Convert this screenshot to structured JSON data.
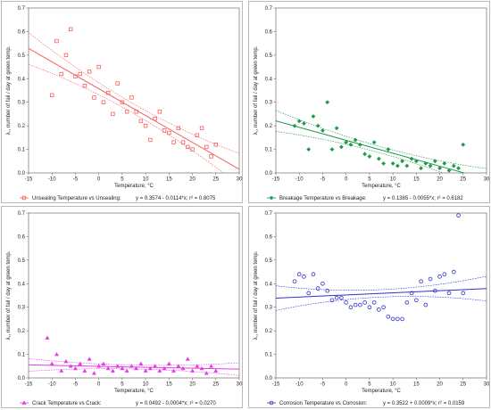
{
  "chart_data": [
    {
      "type": "scatter",
      "xlabel": "Temperature, °C",
      "ylabel": "λ꜀, number of fail / day at green temp.",
      "xlim": [
        -15,
        30
      ],
      "ylim": [
        0.0,
        0.7
      ],
      "xticks": [
        "-15",
        "-10",
        "-5",
        "0",
        "5",
        "10",
        "15",
        "20",
        "25",
        "30"
      ],
      "yticks": [
        "0.0",
        "0.1",
        "0.2",
        "0.3",
        "0.4",
        "0.5",
        "0.6",
        "0.7"
      ],
      "grid": false,
      "legend_position": "bottom",
      "series": [
        {
          "name": "Unsealing",
          "legend_label": "Unsealing  Temperature vs Unsealing:",
          "equation": "y = 0.3574 - 0.0114*x;  r² = 0.8075",
          "marker": "square",
          "color": "#f26161",
          "intercept": 0.3574,
          "slope": -0.0114,
          "band": 0.045,
          "x": [
            -10,
            -9,
            -8,
            -7,
            -6,
            -5,
            -4,
            -3,
            -2,
            -1,
            0,
            1,
            2,
            3,
            4,
            5,
            6,
            7,
            8,
            9,
            10,
            11,
            12,
            13,
            14,
            15,
            16,
            17,
            18,
            19,
            20,
            21,
            22,
            23,
            24,
            25
          ],
          "y": [
            0.33,
            0.56,
            0.42,
            0.5,
            0.61,
            0.41,
            0.42,
            0.37,
            0.43,
            0.32,
            0.45,
            0.3,
            0.34,
            0.25,
            0.38,
            0.3,
            0.26,
            0.32,
            0.26,
            0.22,
            0.2,
            0.14,
            0.23,
            0.26,
            0.18,
            0.17,
            0.13,
            0.19,
            0.13,
            0.11,
            0.1,
            0.16,
            0.19,
            0.11,
            0.07,
            0.12
          ]
        }
      ]
    },
    {
      "type": "scatter",
      "xlabel": "Temperature, °C",
      "ylabel": "λ꜀, number of fail / day at green temp.",
      "xlim": [
        -15,
        30
      ],
      "ylim": [
        0.0,
        0.7
      ],
      "xticks": [
        "-15",
        "-10",
        "-5",
        "0",
        "5",
        "10",
        "15",
        "20",
        "25",
        "30"
      ],
      "yticks": [
        "0.0",
        "0.1",
        "0.2",
        "0.3",
        "0.4",
        "0.5",
        "0.6",
        "0.7"
      ],
      "grid": false,
      "legend_position": "bottom",
      "series": [
        {
          "name": "Breakage",
          "legend_label": "Breakage  Temperature vs Breakage:",
          "equation": "y = 0.1385 - 0.0055*x;  r² = 0.6182",
          "marker": "diamond",
          "color": "#1f9a4a",
          "intercept": 0.1385,
          "slope": -0.0055,
          "band": 0.03,
          "x": [
            -11,
            -10,
            -9,
            -8,
            -7,
            -6,
            -5,
            -4,
            -3,
            -2,
            -1,
            0,
            1,
            2,
            3,
            4,
            5,
            6,
            7,
            8,
            9,
            10,
            11,
            12,
            13,
            14,
            15,
            16,
            17,
            18,
            19,
            20,
            21,
            22,
            23,
            24,
            25
          ],
          "y": [
            0.2,
            0.22,
            0.21,
            0.1,
            0.24,
            0.2,
            0.18,
            0.3,
            0.1,
            0.19,
            0.11,
            0.13,
            0.12,
            0.14,
            0.12,
            0.08,
            0.07,
            0.13,
            0.06,
            0.04,
            0.1,
            0.04,
            0.03,
            0.05,
            0.03,
            0.06,
            0.05,
            0.02,
            0.04,
            0.03,
            0.05,
            0.02,
            0.04,
            0.01,
            0.03,
            0.02,
            0.12
          ]
        }
      ]
    },
    {
      "type": "scatter",
      "xlabel": "Temperature, °C",
      "ylabel": "λ꜀, number of fail / day at green temp.",
      "xlim": [
        -15,
        30
      ],
      "ylim": [
        0.0,
        0.7
      ],
      "xticks": [
        "-15",
        "-10",
        "-5",
        "0",
        "5",
        "10",
        "15",
        "20",
        "25",
        "30"
      ],
      "yticks": [
        "0.0",
        "0.1",
        "0.2",
        "0.3",
        "0.4",
        "0.5",
        "0.6",
        "0.7"
      ],
      "grid": false,
      "legend_position": "bottom",
      "series": [
        {
          "name": "Crack",
          "legend_label": "Crack  Temperature vs Crack:",
          "equation": "y = 0.0492 - 0.0004*x;  r² = 0.0270",
          "marker": "triangle",
          "color": "#e63be6",
          "intercept": 0.0492,
          "slope": -0.0004,
          "band": 0.018,
          "x": [
            -11,
            -10,
            -9,
            -8,
            -7,
            -6,
            -5,
            -4,
            -3,
            -2,
            -1,
            0,
            1,
            2,
            3,
            4,
            5,
            6,
            7,
            8,
            9,
            10,
            11,
            12,
            13,
            14,
            15,
            16,
            17,
            18,
            19,
            20,
            21,
            22,
            23,
            24,
            25
          ],
          "y": [
            0.17,
            0.06,
            0.1,
            0.03,
            0.07,
            0.05,
            0.04,
            0.06,
            0.03,
            0.08,
            0.02,
            0.05,
            0.06,
            0.04,
            0.03,
            0.05,
            0.04,
            0.03,
            0.05,
            0.04,
            0.06,
            0.03,
            0.04,
            0.05,
            0.03,
            0.04,
            0.06,
            0.03,
            0.05,
            0.04,
            0.08,
            0.03,
            0.05,
            0.04,
            0.02,
            0.05,
            0.03
          ]
        }
      ]
    },
    {
      "type": "scatter",
      "xlabel": "Temperature, °C",
      "ylabel": "λ꜀, number of fail / day at green temp.",
      "xlim": [
        -15,
        30
      ],
      "ylim": [
        0.0,
        0.7
      ],
      "xticks": [
        "-15",
        "-10",
        "-5",
        "0",
        "5",
        "10",
        "15",
        "20",
        "25",
        "30"
      ],
      "yticks": [
        "0.0",
        "0.1",
        "0.2",
        "0.3",
        "0.4",
        "0.5",
        "0.6",
        "0.7"
      ],
      "grid": false,
      "legend_position": "bottom",
      "series": [
        {
          "name": "Corrosion",
          "legend_label": "Corrosion  Temperature vs Corrosion:",
          "equation": "y = 0.3522 + 0.0009*x;  r² = 0.0159",
          "marker": "circle",
          "color": "#3030d0",
          "intercept": 0.3522,
          "slope": 0.0009,
          "band": 0.035,
          "x": [
            -11,
            -10,
            -9,
            -8,
            -7,
            -6,
            -5,
            -4,
            -3,
            -2,
            -1,
            0,
            1,
            2,
            3,
            4,
            5,
            6,
            7,
            8,
            9,
            10,
            11,
            12,
            13,
            14,
            15,
            16,
            17,
            18,
            19,
            20,
            21,
            22,
            23,
            24,
            25
          ],
          "y": [
            0.41,
            0.44,
            0.43,
            0.36,
            0.44,
            0.38,
            0.4,
            0.37,
            0.33,
            0.34,
            0.34,
            0.32,
            0.3,
            0.31,
            0.31,
            0.32,
            0.3,
            0.32,
            0.29,
            0.3,
            0.26,
            0.25,
            0.25,
            0.25,
            0.32,
            0.36,
            0.33,
            0.41,
            0.31,
            0.42,
            0.37,
            0.43,
            0.44,
            0.36,
            0.45,
            0.69,
            0.36
          ]
        }
      ]
    }
  ]
}
